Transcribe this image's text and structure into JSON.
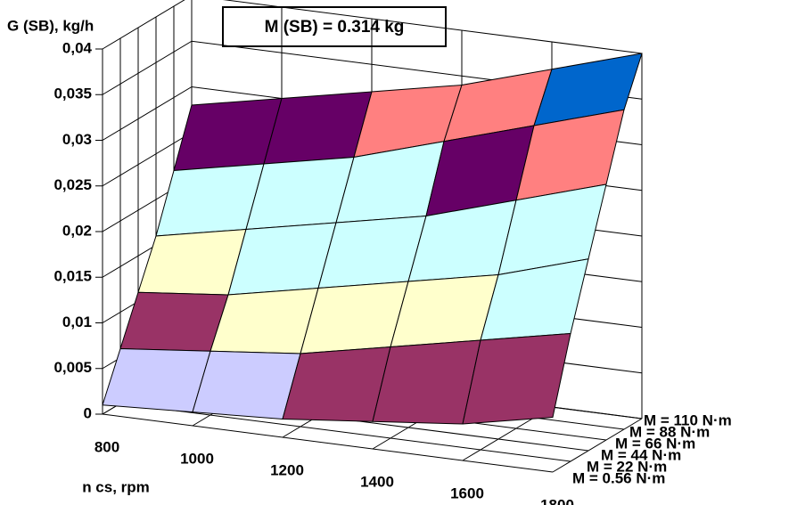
{
  "chart_data": {
    "type": "surface",
    "title": "M (SB) = 0.314 kg",
    "y_label": "G (SB), kg/h",
    "x_label": "n cs, rpm",
    "categories": [
      "800",
      "1000",
      "1200",
      "1400",
      "1600",
      "1800"
    ],
    "series": [
      {
        "name": "M = 0.56 N·m",
        "values": [
          0.001,
          0.0015,
          0.002,
          0.003,
          0.004,
          0.006
        ]
      },
      {
        "name": "M = 22 N·m",
        "values": [
          0.006,
          0.007,
          0.008,
          0.01,
          0.012,
          0.014
        ]
      },
      {
        "name": "M = 44 N·m",
        "values": [
          0.011,
          0.012,
          0.014,
          0.016,
          0.018,
          0.021
        ]
      },
      {
        "name": "M = 66 N·m",
        "values": [
          0.016,
          0.018,
          0.02,
          0.022,
          0.025,
          0.028
        ]
      },
      {
        "name": "M = 88 N·m",
        "values": [
          0.022,
          0.024,
          0.026,
          0.029,
          0.032,
          0.035
        ]
      },
      {
        "name": "M = 110 N·m",
        "values": [
          0.028,
          0.03,
          0.032,
          0.034,
          0.037,
          0.04
        ]
      }
    ],
    "ylim": [
      0,
      0.04
    ],
    "yticks": [
      0,
      {
        "value": 0.005,
        "label": "0,005"
      },
      {
        "value": 0.01,
        "label": "0,01"
      },
      {
        "value": 0.015,
        "label": "0,015"
      },
      {
        "value": 0.02,
        "label": "0,02"
      },
      {
        "value": 0.025,
        "label": "0,025"
      },
      {
        "value": 0.03,
        "label": "0,03"
      },
      {
        "value": 0.035,
        "label": "0,035"
      },
      {
        "value": 0.04,
        "label": "0,04"
      }
    ],
    "band_colors": [
      "#ccccff",
      "#993366",
      "#ffffcc",
      "#ccffff",
      "#ccffff",
      "#660066",
      "#ff8080",
      "#0066cc",
      "#ccccff"
    ],
    "grid": true
  }
}
